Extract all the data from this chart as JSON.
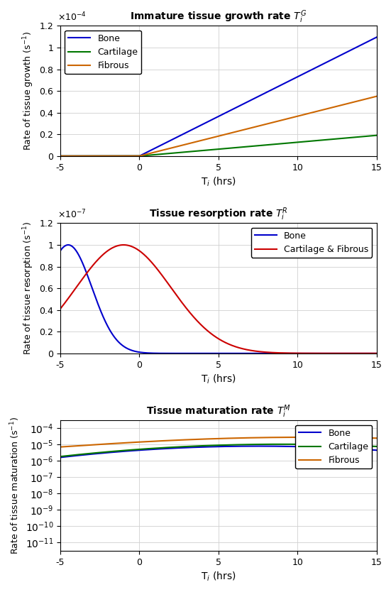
{
  "xlim": [
    -5,
    15
  ],
  "xticks": [
    -5,
    0,
    5,
    10,
    15
  ],
  "xlabel": "T$_i$ (hrs)",
  "plot1": {
    "title_text": "Immature tissue growth rate ",
    "title_math": "$T_i^G$",
    "ylabel": "Rate of tissue growth (s$^{-1}$)",
    "ylim": [
      0,
      0.00012
    ],
    "ytick_vals": [
      0.0,
      2e-05,
      4e-05,
      6e-05,
      8e-05,
      0.0001,
      0.00012
    ],
    "ytick_labels": [
      "0",
      "0.2",
      "0.4",
      "0.6",
      "0.8",
      "1",
      "1.2"
    ],
    "scale_label": "$\\times 10^{-4}$",
    "bone_slope": 7.3e-06,
    "fibrous_slope": 3.67e-06,
    "cartilage_slope": 1.27e-06,
    "colors": {
      "bone": "#0000cc",
      "cartilage": "#007700",
      "fibrous": "#cc6600"
    },
    "legend": [
      "Bone",
      "Cartilage",
      "Fibrous"
    ]
  },
  "plot2": {
    "title_text": "Tissue resorption rate ",
    "title_math": "$T_i^R$",
    "ylabel": "Rate of tissue resorption (s$^{-1}$)",
    "ylim": [
      0,
      1.2e-07
    ],
    "ytick_vals": [
      0.0,
      2e-08,
      4e-08,
      6e-08,
      8e-08,
      1e-07,
      1.2e-07
    ],
    "ytick_labels": [
      "0",
      "0.2",
      "0.4",
      "0.6",
      "0.8",
      "1",
      "1.2"
    ],
    "scale_label": "$\\times 10^{-7}$",
    "bone_amp": 1e-07,
    "bone_mu": -4.5,
    "bone_sigma": 1.5,
    "cf_amp": 1e-07,
    "cf_mu": -1.0,
    "cf_sigma": 3.0,
    "colors": {
      "bone": "#0000cc",
      "cf": "#cc0000"
    },
    "legend": [
      "Bone",
      "Cartilage & Fibrous"
    ]
  },
  "plot3": {
    "title_text": "Tissue maturation rate ",
    "title_math": "$T_i^M$",
    "ylabel": "Rate of tissue maturation (s$^{-1}$)",
    "ylim_log": [
      3e-12,
      0.0003
    ],
    "ytick_vals": [
      1e-10,
      1e-05
    ],
    "colors": {
      "bone": "#0000cc",
      "cartilage": "#007700",
      "fibrous": "#cc6600"
    },
    "legend": [
      "Bone",
      "Cartilage",
      "Fibrous"
    ],
    "bone_amp": 8e-06,
    "bone_mu": 7.5,
    "bone_sigma": 7.0,
    "bone_base": 8e-11,
    "cartilage_amp": 1.05e-05,
    "cartilage_mu": 9.0,
    "cartilage_sigma": 7.5,
    "cartilage_base": 1e-10,
    "fibrous_amp": 2.6e-05,
    "fibrous_mu": 10.5,
    "fibrous_sigma": 8.5,
    "fibrous_base": 2.2e-06
  }
}
